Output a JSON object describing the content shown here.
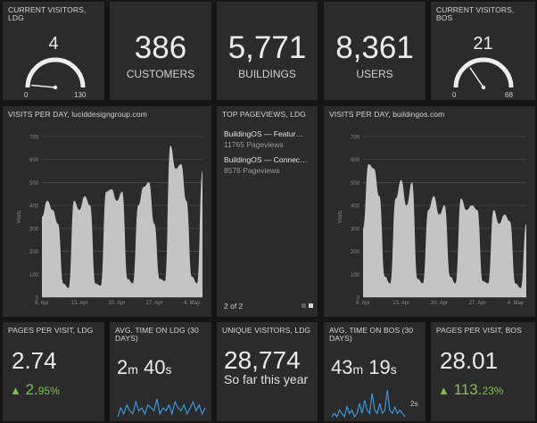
{
  "tiles": {
    "current_visitors_ldg": {
      "title": "CURRENT VISITORS,\nLDG",
      "value": "4",
      "min": "0",
      "max": "130",
      "fraction": 0.03
    },
    "customers": {
      "value": "386",
      "label": "CUSTOMERS"
    },
    "buildings": {
      "value": "5,771",
      "label": "BUILDINGS"
    },
    "users": {
      "value": "8,361",
      "label": "USERS"
    },
    "current_visitors_bos": {
      "title": "CURRENT VISITORS,\nBOS",
      "value": "21",
      "min": "0",
      "max": "68",
      "fraction": 0.31
    },
    "visits_ldg": {
      "title": "VISITS PER DAY, luciddesigngroup.com"
    },
    "top_pageviews": {
      "title": "TOP PAGEVIEWS, LDG",
      "items": [
        {
          "name": "BuildingOS — Featur…",
          "count": "11765 Pageviews"
        },
        {
          "name": "BuildingOS — Connec…",
          "count": "8576 Pageviews"
        }
      ],
      "pager": "2 of 2"
    },
    "visits_bos": {
      "title": "VISITS PER DAY, buildingos.com"
    },
    "pages_per_visit_ldg": {
      "title": "PAGES PER VISIT, LDG",
      "value": "2.74",
      "change": "2.",
      "change_small": "95%"
    },
    "avg_time_ldg": {
      "title": "AVG. TIME ON LDG (30\nDAYS)",
      "min": "2",
      "min_unit": "m",
      "sec": "40",
      "sec_unit": "s"
    },
    "unique_visitors": {
      "title": "UNIQUE VISITORS, LDG",
      "value": "28,774",
      "subtitle": "So far this year"
    },
    "avg_time_bos": {
      "title": "AVG. TIME ON BOS (30\nDAYS)",
      "min": "43",
      "min_unit": "m",
      "sec": "19",
      "sec_unit": "s",
      "axis": "2s"
    },
    "pages_per_visit_bos": {
      "title": "PAGES PER VISIT, BOS",
      "value": "28.01",
      "change": "113.",
      "change_small": "23%"
    }
  },
  "chart_data": [
    {
      "type": "area",
      "title": "VISITS PER DAY, luciddesigngroup.com",
      "ylabel": "Visits",
      "ylim": [
        0,
        700
      ],
      "yticks": [
        "0",
        "100",
        "200",
        "300",
        "400",
        "500",
        "600",
        "700"
      ],
      "xticks": [
        "6. Apr",
        "13. Apr",
        "20. Apr",
        "27. Apr",
        "4. May"
      ],
      "x": [
        0,
        1,
        2,
        3,
        4,
        5,
        6,
        7,
        8,
        9,
        10,
        11,
        12,
        13,
        14,
        15,
        16,
        17,
        18,
        19,
        20,
        21,
        22,
        23,
        24,
        25,
        26,
        27,
        28,
        29,
        30
      ],
      "values": [
        350,
        420,
        380,
        320,
        60,
        40,
        420,
        380,
        440,
        400,
        60,
        50,
        460,
        470,
        420,
        460,
        80,
        60,
        400,
        480,
        500,
        320,
        80,
        70,
        660,
        560,
        580,
        420,
        90,
        60,
        550
      ]
    },
    {
      "type": "area",
      "title": "VISITS PER DAY, buildingos.com",
      "ylabel": "Visits",
      "ylim": [
        0,
        700
      ],
      "yticks": [
        "0",
        "100",
        "200",
        "300",
        "400",
        "500",
        "600",
        "700"
      ],
      "xticks": [
        "6. Apr",
        "13. Apr",
        "20. Apr",
        "27. Apr",
        "4. May"
      ],
      "x": [
        0,
        1,
        2,
        3,
        4,
        5,
        6,
        7,
        8,
        9,
        10,
        11,
        12,
        13,
        14,
        15,
        16,
        17,
        18,
        19,
        20,
        21,
        22,
        23,
        24,
        25,
        26,
        27,
        28,
        29,
        30
      ],
      "values": [
        300,
        580,
        560,
        440,
        90,
        60,
        430,
        510,
        400,
        500,
        80,
        60,
        380,
        440,
        360,
        400,
        90,
        60,
        430,
        380,
        400,
        380,
        70,
        60,
        380,
        320,
        360,
        330,
        60,
        40,
        320
      ]
    },
    {
      "type": "line",
      "title": "AVG. TIME ON LDG (30 DAYS)",
      "x": [
        0,
        1,
        2,
        3,
        4,
        5,
        6,
        7,
        8,
        9,
        10,
        11,
        12,
        13,
        14,
        15,
        16,
        17,
        18,
        19,
        20,
        21,
        22,
        23,
        24,
        25,
        26,
        27,
        28,
        29
      ],
      "values": [
        2,
        5,
        3,
        6,
        4,
        3,
        7,
        4,
        5,
        3,
        6,
        5,
        4,
        8,
        3,
        5,
        4,
        6,
        3,
        7,
        5,
        4,
        6,
        3,
        5,
        7,
        4,
        6,
        3,
        5
      ]
    },
    {
      "type": "line",
      "title": "AVG. TIME ON BOS (30 DAYS)",
      "x": [
        0,
        1,
        2,
        3,
        4,
        5,
        6,
        7,
        8,
        9,
        10,
        11,
        12,
        13,
        14,
        15,
        16,
        17,
        18,
        19,
        20,
        21,
        22,
        23,
        24,
        25,
        26,
        27,
        28,
        29
      ],
      "values": [
        1,
        2,
        1,
        3,
        2,
        1,
        4,
        2,
        3,
        1,
        2,
        5,
        2,
        6,
        3,
        2,
        8,
        3,
        2,
        5,
        2,
        3,
        9,
        3,
        2,
        4,
        2,
        3,
        2,
        1
      ]
    }
  ],
  "colors": {
    "tile_bg": "#2b2b2b",
    "area_fill": "#c4c4c4",
    "sparkline": "#3b9ee6",
    "positive": "#7ec24a"
  }
}
